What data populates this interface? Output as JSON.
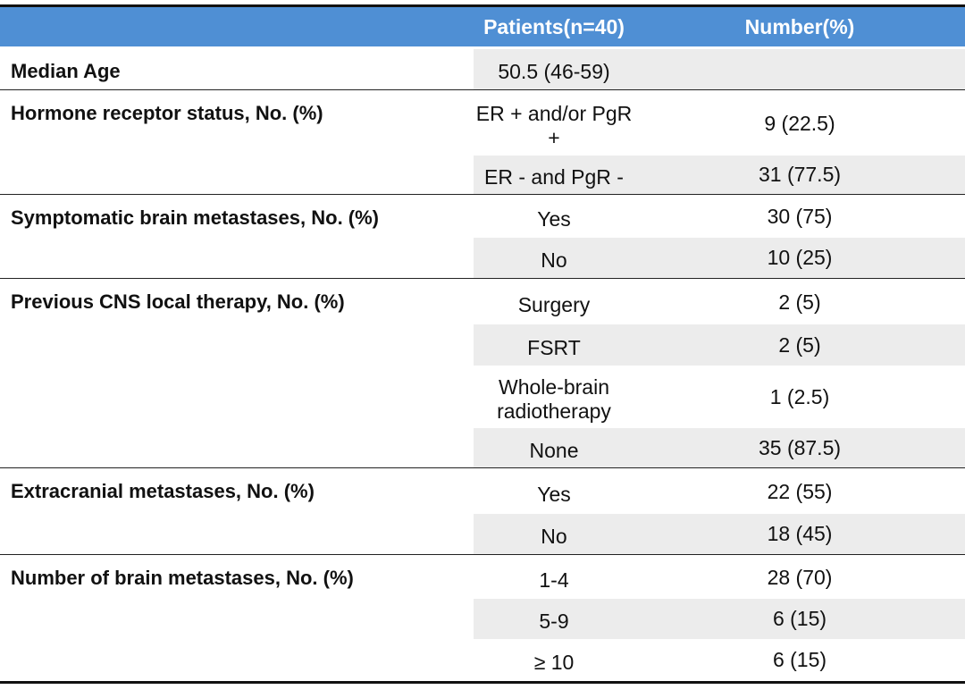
{
  "header": {
    "columns": [
      "Patients(n=40)",
      "Number(%)"
    ]
  },
  "groups": [
    {
      "label": "Median Age",
      "rows": [
        {
          "level": "50.5 (46-59)"
        }
      ]
    },
    {
      "label": "Hormone receptor status, No. (%)",
      "rows": [
        {
          "level": "ER + and/or PgR +",
          "value": "9 (22.5)"
        },
        {
          "level": "ER - and PgR -",
          "value": "31 (77.5)"
        }
      ]
    },
    {
      "label": "Symptomatic brain metastases, No. (%)",
      "rows": [
        {
          "level": "Yes",
          "value": "30 (75)"
        },
        {
          "level": "No",
          "value": "10 (25)"
        }
      ]
    },
    {
      "label": "Previous CNS local therapy, No. (%)",
      "rows": [
        {
          "level": "Surgery",
          "value": "2 (5)"
        },
        {
          "level": "FSRT",
          "value": "2 (5)"
        },
        {
          "level": "Whole-brain radiotherapy",
          "value": "1 (2.5)"
        },
        {
          "level": "None",
          "value": "35 (87.5)"
        }
      ]
    },
    {
      "label": "Extracranial metastases, No. (%)",
      "rows": [
        {
          "level": "Yes",
          "value": "22 (55)"
        },
        {
          "level": "No",
          "value": "18 (45)"
        }
      ]
    },
    {
      "label": "Number of brain metastases, No. (%)",
      "rows": [
        {
          "level": "1-4",
          "value": "28 (70)"
        },
        {
          "level": "5-9",
          "value": "6 (15)"
        },
        {
          "level": "≥ 10",
          "value": "6 (15)"
        }
      ]
    }
  ]
}
